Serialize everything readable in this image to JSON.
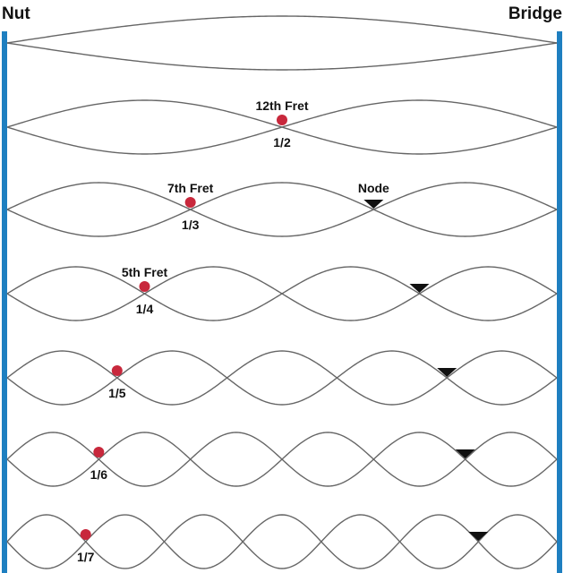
{
  "labels": {
    "nut": "Nut",
    "bridge": "Bridge",
    "node": "Node"
  },
  "colors": {
    "background": "#ffffff",
    "end_bar": "#1e7fc0",
    "string": "#666666",
    "fret_dot": "#c8283c",
    "node_marker": "#111111",
    "text": "#111111"
  },
  "harmonics": [
    {
      "loops": 1,
      "fraction": "",
      "fret_label": "",
      "has_node_marker": false
    },
    {
      "loops": 2,
      "fraction": "1/2",
      "fret_label": "12th Fret",
      "has_node_marker": false
    },
    {
      "loops": 3,
      "fraction": "1/3",
      "fret_label": "7th Fret",
      "has_node_marker": true
    },
    {
      "loops": 4,
      "fraction": "1/4",
      "fret_label": "5th Fret",
      "has_node_marker": true
    },
    {
      "loops": 5,
      "fraction": "1/5",
      "fret_label": "",
      "has_node_marker": true
    },
    {
      "loops": 6,
      "fraction": "1/6",
      "fret_label": "",
      "has_node_marker": true
    },
    {
      "loops": 7,
      "fraction": "1/7",
      "fret_label": "",
      "has_node_marker": true
    }
  ]
}
